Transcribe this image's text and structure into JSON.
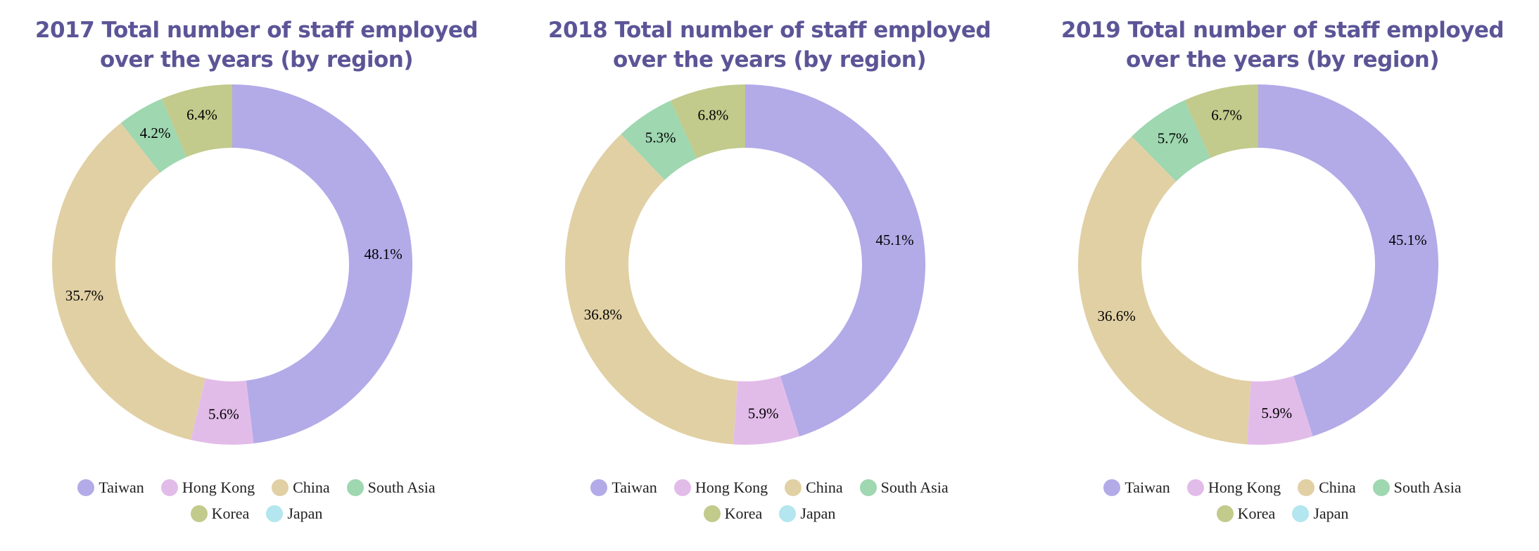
{
  "colors": {
    "Taiwan": "#b3aae8",
    "Hong Kong": "#e2bce9",
    "China": "#e1d0a4",
    "South Asia": "#9ed7b0",
    "Korea": "#c2ca8c",
    "Japan": "#b3e6ee",
    "title": "#5b5597"
  },
  "chart_data": [
    {
      "type": "pie",
      "donut": true,
      "title": "2017 Total number of staff employed over the years (by region)",
      "title_lines": [
        "2017 Total number of staff employed",
        "over the years (by region)"
      ],
      "legend_position": "bottom",
      "categories": [
        "Taiwan",
        "Hong Kong",
        "China",
        "South Asia",
        "Korea",
        "Japan"
      ],
      "values": [
        48.1,
        5.6,
        35.7,
        4.2,
        6.4,
        0
      ],
      "labels": [
        "48.1%",
        "5.6%",
        "35.7%",
        "4.2%",
        "6.4%",
        ""
      ]
    },
    {
      "type": "pie",
      "donut": true,
      "title": "2018 Total number of staff employed over the years (by region)",
      "title_lines": [
        "2018 Total number of staff employed",
        "over the years (by region)"
      ],
      "legend_position": "bottom",
      "categories": [
        "Taiwan",
        "Hong Kong",
        "China",
        "South Asia",
        "Korea",
        "Japan"
      ],
      "values": [
        45.1,
        5.9,
        36.8,
        5.3,
        6.8,
        0
      ],
      "labels": [
        "45.1%",
        "5.9%",
        "36.8%",
        "5.3%",
        "6.8%",
        ""
      ]
    },
    {
      "type": "pie",
      "donut": true,
      "title": "2019 Total number of staff employed over the years (by region)",
      "title_lines": [
        "2019 Total number of staff employed",
        "over the years (by region)"
      ],
      "legend_position": "bottom",
      "categories": [
        "Taiwan",
        "Hong Kong",
        "China",
        "South Asia",
        "Korea",
        "Japan"
      ],
      "values": [
        45.1,
        5.9,
        36.6,
        5.7,
        6.7,
        0
      ],
      "labels": [
        "45.1%",
        "5.9%",
        "36.6%",
        "5.7%",
        "6.7%",
        ""
      ]
    }
  ],
  "legend_rows": [
    [
      "Taiwan",
      "Hong Kong",
      "China",
      "South Asia"
    ],
    [
      "Korea",
      "Japan"
    ]
  ]
}
